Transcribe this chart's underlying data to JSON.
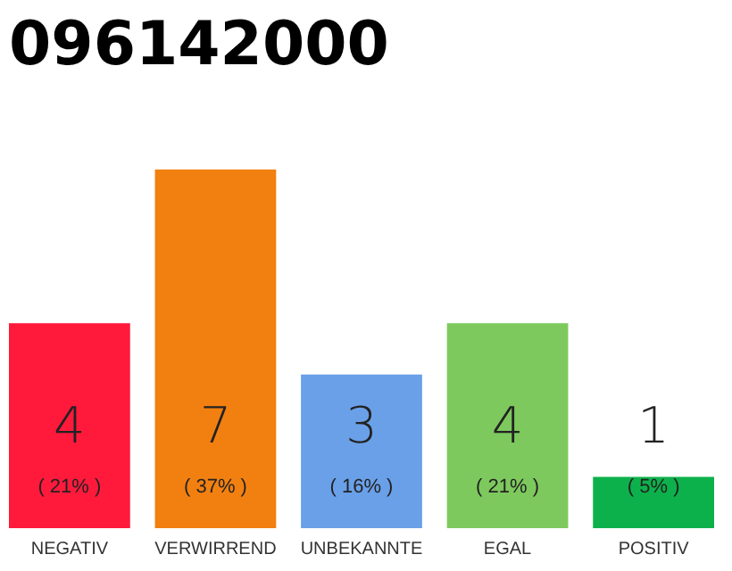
{
  "chart_data": {
    "type": "bar",
    "title": "096142000",
    "categories": [
      "NEGATIV",
      "VERWIRREND",
      "UNBEKANNTE",
      "EGAL",
      "POSITIV"
    ],
    "values": [
      4,
      7,
      3,
      4,
      1
    ],
    "colors": [
      "#ff1a3c",
      "#f28010",
      "#6aa0e8",
      "#7dc95e",
      "#0db14b"
    ],
    "ylim": [
      0,
      7
    ],
    "data_labels": true,
    "grid": false,
    "annotations": [
      "( 21% )",
      "( 37% )",
      "( 16% )",
      "( 21% )",
      "( 5% )"
    ]
  }
}
